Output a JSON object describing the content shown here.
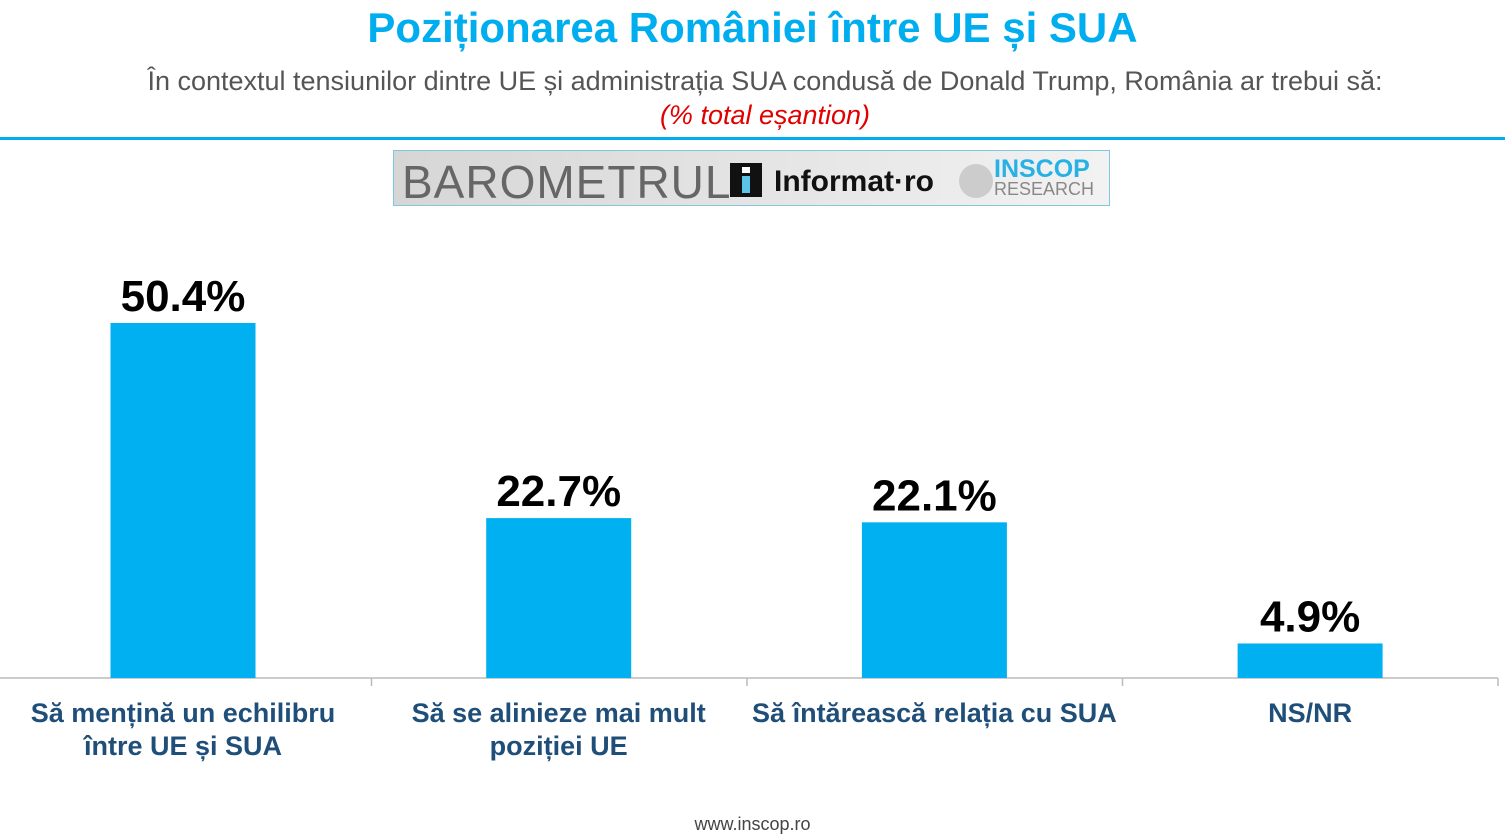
{
  "chart_data": {
    "type": "bar",
    "title": "Poziționarea României între UE și SUA",
    "subtitle": "În contextul tensiunilor dintre UE și administrația SUA condusă de Donald Trump, România ar trebui să:",
    "note": "(% total eșantion)",
    "categories": [
      "Să mențină un echilibru între UE și SUA",
      "Să se alinieze mai mult poziției UE",
      "Să întărească relația cu SUA",
      "NS/NR"
    ],
    "values": [
      50.4,
      22.7,
      22.1,
      4.9
    ],
    "value_labels": [
      "50.4%",
      "22.7%",
      "22.1%",
      "4.9%"
    ],
    "xlabel": "",
    "ylabel": "",
    "ylim": [
      0,
      55
    ],
    "grid": false,
    "bar_color": "#00B0F0"
  },
  "banner": {
    "barometru": "BAROMETRUL",
    "informat": "Informat·ro",
    "inscop": "INSCOP",
    "research": "RESEARCH"
  },
  "footer": "www.inscop.ro"
}
